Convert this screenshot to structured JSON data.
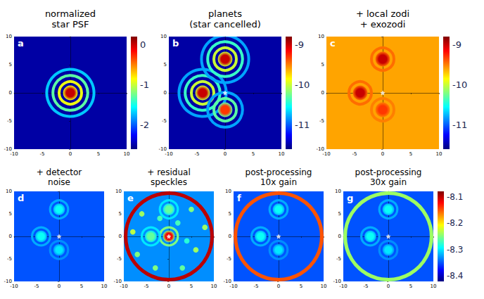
{
  "chart_data": [
    {
      "type": "heatmap",
      "letter": "a",
      "title": "normalized star PSF",
      "xlim": [
        -10,
        10
      ],
      "ylim": [
        -10,
        10
      ],
      "xticks": [
        -10,
        -5,
        0,
        5,
        10
      ],
      "yticks": [
        -10,
        -5,
        0,
        5,
        10
      ],
      "background": -2.5,
      "sources": [
        {
          "x": 0,
          "y": 0,
          "peak": 0,
          "rings": [
            -0.9,
            -1.3,
            -1.7
          ]
        }
      ],
      "colorbar": {
        "range": [
          -2.6,
          0.2
        ],
        "ticks": [
          0,
          -1,
          -2
        ]
      }
    },
    {
      "type": "heatmap",
      "letter": "b",
      "title": "planets (star cancelled)",
      "xlim": [
        -10,
        10
      ],
      "ylim": [
        -10,
        10
      ],
      "xticks": [
        -10,
        -5,
        0,
        5,
        10
      ],
      "yticks": [
        -10,
        -5,
        0,
        5,
        10
      ],
      "background": -11.5,
      "sources": [
        {
          "x": -4,
          "y": 0,
          "peak": -9.0,
          "rings": [
            -10.0,
            -10.4,
            -10.8
          ]
        },
        {
          "x": 0,
          "y": 6,
          "peak": -9.0,
          "rings": [
            -10.0,
            -10.4,
            -10.8
          ]
        },
        {
          "x": 0,
          "y": -3,
          "peak": -9.3,
          "rings": [
            -10.3,
            -10.8
          ]
        }
      ],
      "star": {
        "x": 0,
        "y": 0
      },
      "colorbar": {
        "range": [
          -11.6,
          -8.8
        ],
        "ticks": [
          -9,
          -10,
          -11
        ]
      }
    },
    {
      "type": "heatmap",
      "letter": "c",
      "title": "+ local zodi + exozodi",
      "xlim": [
        -10,
        10
      ],
      "ylim": [
        -10,
        10
      ],
      "xticks": [
        -10,
        -5,
        0,
        5,
        10
      ],
      "yticks": [
        -10,
        -5,
        0,
        5,
        10
      ],
      "background": -9.6,
      "sources": [
        {
          "x": -4,
          "y": 0,
          "peak": -9.0,
          "rings": [
            -9.45
          ]
        },
        {
          "x": 0,
          "y": 6,
          "peak": -9.0,
          "rings": [
            -9.45
          ]
        },
        {
          "x": 0,
          "y": -3,
          "peak": -9.3,
          "rings": [
            -9.5
          ]
        }
      ],
      "star": {
        "x": 0,
        "y": 0
      },
      "colorbar": {
        "range": [
          -11.6,
          -8.8
        ],
        "ticks": [
          -9,
          -10,
          -11
        ]
      }
    },
    {
      "type": "heatmap",
      "letter": "d",
      "title": "+ detector noise",
      "xlim": [
        -10,
        10
      ],
      "ylim": [
        -10,
        10
      ],
      "xticks": [
        -10,
        -5,
        0,
        5,
        10
      ],
      "yticks": [
        -10,
        -5,
        0,
        5,
        10
      ],
      "background": -8.35,
      "sources": [
        {
          "x": -4,
          "y": 0,
          "peak": -8.29,
          "rings": [
            -8.32
          ]
        },
        {
          "x": 0,
          "y": 6,
          "peak": -8.29,
          "rings": [
            -8.32
          ]
        },
        {
          "x": 0,
          "y": -3,
          "peak": -8.3,
          "rings": [
            -8.33
          ]
        }
      ],
      "star": {
        "x": 0,
        "y": 0
      }
    },
    {
      "type": "heatmap",
      "letter": "e",
      "title": "+ residual speckles",
      "xlim": [
        -10,
        10
      ],
      "ylim": [
        -10,
        10
      ],
      "xticks": [
        -10,
        -5,
        0,
        5,
        10
      ],
      "yticks": [
        -10,
        -5,
        0,
        5,
        10
      ],
      "background": -8.33,
      "sources": [
        {
          "x": 0,
          "y": 0,
          "peak": -8.12,
          "rings": [
            -8.25
          ]
        },
        {
          "x": -4,
          "y": 0,
          "peak": -8.26,
          "rings": [
            -8.3
          ]
        },
        {
          "x": 0,
          "y": 6,
          "peak": -8.26,
          "rings": [
            -8.3
          ]
        }
      ],
      "speckles": [
        {
          "x": -6,
          "y": 5,
          "value": -8.24
        },
        {
          "x": 5,
          "y": 6,
          "value": -8.25
        },
        {
          "x": 6,
          "y": -3,
          "value": -8.24
        },
        {
          "x": -7,
          "y": -4,
          "value": -8.25
        },
        {
          "x": 3,
          "y": -7,
          "value": -8.26
        },
        {
          "x": -3,
          "y": -7,
          "value": -8.25
        },
        {
          "x": -8,
          "y": 1,
          "value": -8.23
        },
        {
          "x": 8,
          "y": 2,
          "value": -8.24
        },
        {
          "x": 2,
          "y": 3,
          "value": -8.27
        },
        {
          "x": -2,
          "y": 4,
          "value": -8.27
        },
        {
          "x": 4,
          "y": -1,
          "value": -8.28
        }
      ],
      "edge_ring": {
        "x": 0,
        "y": 0,
        "radius": 9.6,
        "value": -8.1
      },
      "star": {
        "x": 0,
        "y": 0
      }
    },
    {
      "type": "heatmap",
      "letter": "f",
      "title": "post-processing 10x gain",
      "xlim": [
        -10,
        10
      ],
      "ylim": [
        -10,
        10
      ],
      "xticks": [
        -10,
        -5,
        0,
        5,
        10
      ],
      "yticks": [
        -10,
        -5,
        0,
        5,
        10
      ],
      "background": -8.35,
      "sources": [
        {
          "x": -4,
          "y": 0,
          "peak": -8.29,
          "rings": [
            -8.32
          ]
        },
        {
          "x": 0,
          "y": 6,
          "peak": -8.29,
          "rings": [
            -8.32
          ]
        },
        {
          "x": 0,
          "y": -3,
          "peak": -8.3,
          "rings": [
            -8.33
          ]
        }
      ],
      "edge_ring": {
        "x": 0,
        "y": 0,
        "radius": 9.6,
        "value": -8.15
      },
      "star": {
        "x": 0,
        "y": 0
      }
    },
    {
      "type": "heatmap",
      "letter": "g",
      "title": "post-processing 30x gain",
      "xlim": [
        -10,
        10
      ],
      "ylim": [
        -10,
        10
      ],
      "xticks": [
        -10,
        -5,
        0,
        5,
        10
      ],
      "yticks": [
        -10,
        -5,
        0,
        5,
        10
      ],
      "background": -8.35,
      "sources": [
        {
          "x": -4,
          "y": 0,
          "peak": -8.29,
          "rings": [
            -8.32
          ]
        },
        {
          "x": 0,
          "y": 6,
          "peak": -8.29,
          "rings": [
            -8.32
          ]
        },
        {
          "x": 0,
          "y": -3,
          "peak": -8.3,
          "rings": [
            -8.33
          ]
        }
      ],
      "edge_ring": {
        "x": 0,
        "y": 0,
        "radius": 9.6,
        "value": -8.24
      },
      "star": {
        "x": 0,
        "y": 0
      },
      "colorbar": {
        "range": [
          -8.42,
          -8.08
        ],
        "ticks": [
          -8.1,
          -8.2,
          -8.3,
          -8.4
        ]
      }
    }
  ]
}
